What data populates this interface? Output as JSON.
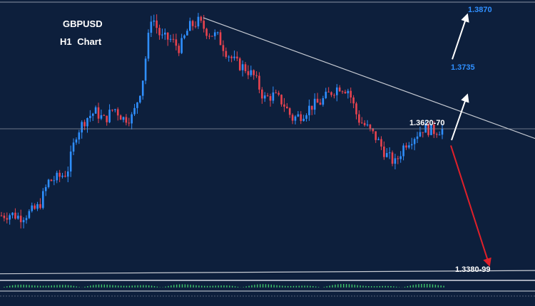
{
  "title": "GBPUSD",
  "subtitle": "H1  Chart",
  "levels": {
    "target_1": "1.3870",
    "target_2": "1.3735",
    "resistance": "1.3620-70",
    "support": "1.3380-99"
  },
  "colors": {
    "background": "#0d1f3c",
    "bull_candle": "#2f8fff",
    "bear_candle": "#e8434f",
    "target_text": "#2f8fff",
    "up_arrow": "#ffffff",
    "down_arrow": "#e0202a",
    "trendline": "#c8ccd4",
    "oscillator": "#3ec96b"
  },
  "chart_data": {
    "type": "candlestick",
    "symbol": "GBPUSD",
    "timeframe": "H1",
    "ylim": [
      1.337,
      1.3885
    ],
    "close_path": [
      1.3485,
      1.3488,
      1.3482,
      1.349,
      1.3502,
      1.3548,
      1.3555,
      1.3565,
      1.3638,
      1.3665,
      1.3678,
      1.3662,
      1.3685,
      1.3665,
      1.3668,
      1.373,
      1.3858,
      1.3815,
      1.3812,
      1.3795,
      1.3835,
      1.3845,
      1.3825,
      1.3818,
      1.3788,
      1.3768,
      1.3758,
      1.3742,
      1.3702,
      1.3708,
      1.3695,
      1.3665,
      1.3672,
      1.3688,
      1.3695,
      1.3712,
      1.3725,
      1.3718,
      1.3665,
      1.3648,
      1.3628,
      1.3598,
      1.3582,
      1.3618,
      1.3632,
      1.3648,
      1.3642,
      1.3645
    ],
    "trendlines": [
      {
        "kind": "descending resistance",
        "x_start": 0.38,
        "x_end": 1.0,
        "y_start": 1.3852,
        "y_end": 1.3628
      },
      {
        "kind": "support",
        "x_start": 0.0,
        "x_end": 1.0,
        "y_start": 1.3377,
        "y_end": 1.3383
      }
    ],
    "last_price": 1.3646,
    "scenarios": [
      {
        "direction": "up",
        "from": "1.3620-70",
        "to": "1.3735"
      },
      {
        "direction": "up",
        "from": "1.3735",
        "to": "1.3870"
      },
      {
        "direction": "down",
        "from": "1.3620-70",
        "to": "1.3380-99"
      }
    ],
    "grid": false
  }
}
